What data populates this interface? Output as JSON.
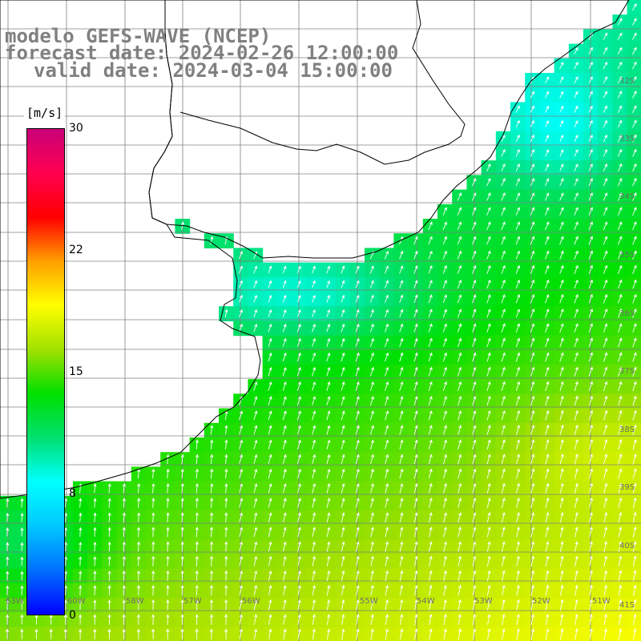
{
  "title": {
    "line1": "modelo GEFS-WAVE (NCEP)",
    "line2": "forecast date: 2024-02-26 12:00:00",
    "line3": "valid date: 2024-03-04 15:00:00"
  },
  "colorbar": {
    "unit": "[m/s]",
    "ticks": [
      "30",
      "22",
      "15",
      "8",
      "0"
    ],
    "tick_values": [
      30,
      22,
      15,
      8,
      0
    ],
    "min": 0,
    "max": 30,
    "colors": [
      "#0000ff",
      "#0070ff",
      "#00c8ff",
      "#00ffff",
      "#00e070",
      "#00e000",
      "#a0e000",
      "#ffff00",
      "#ffa000",
      "#ff0000",
      "#ff0050",
      "#c80078"
    ]
  },
  "lat_labels": [
    "32S",
    "33S",
    "34S",
    "35S",
    "36S",
    "37S",
    "38S",
    "39S",
    "40S",
    "41S"
  ],
  "lon_labels": [
    "63W",
    "60W",
    "58W",
    "57W",
    "56W",
    "55W",
    "54W",
    "53W",
    "52W",
    "51W"
  ],
  "colors": {
    "land": "#ffffff",
    "grid": "#808080",
    "coast": "#000000",
    "arrow": "#ffffff"
  }
}
